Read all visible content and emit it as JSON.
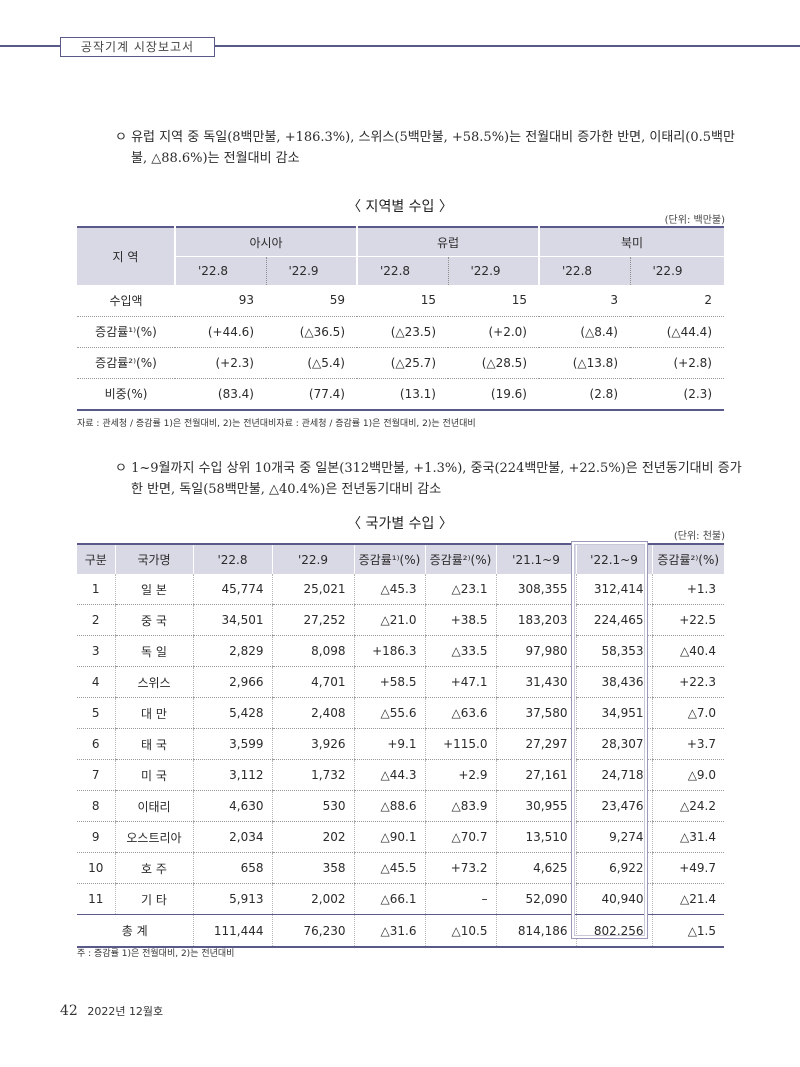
{
  "header": {
    "title": "공작기계 시장보고서"
  },
  "bullet1": "ㅇ 유럽 지역 중 독일(8백만불, +186.3%), 스위스(5백만불, +58.5%)는 전월대비 증가한 반면, 이태리(0.5백만불, △88.6%)는 전월대비 감소",
  "table1": {
    "caption": "〈 지역별 수입 〉",
    "unit": "(단위: 백만불)",
    "region_header": "지 역",
    "groups": [
      "아시아",
      "유럽",
      "북미"
    ],
    "periods": [
      "'22.8",
      "'22.9",
      "'22.8",
      "'22.9",
      "'22.8",
      "'22.9"
    ],
    "rows": [
      {
        "label": "수입액",
        "values": [
          "93",
          "59",
          "15",
          "15",
          "3",
          "2"
        ]
      },
      {
        "label": "증감률¹⁾(%)",
        "values": [
          "(+44.6)",
          "(△36.5)",
          "(△23.5)",
          "(+2.0)",
          "(△8.4)",
          "(△44.4)"
        ]
      },
      {
        "label": "증감률²⁾(%)",
        "values": [
          "(+2.3)",
          "(△5.4)",
          "(△25.7)",
          "(△28.5)",
          "(△13.8)",
          "(+2.8)"
        ]
      },
      {
        "label": "비중(%)",
        "values": [
          "(83.4)",
          "(77.4)",
          "(13.1)",
          "(19.6)",
          "(2.8)",
          "(2.3)"
        ]
      }
    ],
    "note": "자료 : 관세청 / 증감률 1)은 전월대비, 2)는 전년대비자료 : 관세청 / 증감률 1)은 전월대비, 2)는 전년대비"
  },
  "bullet2": "ㅇ 1~9월까지 수입 상위 10개국 중 일본(312백만불, +1.3%), 중국(224백만불, +22.5%)은 전년동기대비 증가한 반면, 독일(58백만불, △40.4%)은 전년동기대비 감소",
  "table2": {
    "caption": "〈 국가별 수입 〉",
    "unit": "(단위: 천불)",
    "headers": [
      "구분",
      "국가명",
      "'22.8",
      "'22.9",
      "증감률¹⁾(%)",
      "증감률²⁾(%)",
      "'21.1~9",
      "'22.1~9",
      "증감률²⁾(%)"
    ],
    "rows": [
      {
        "rank": "1",
        "name": "일 본",
        "values": [
          "45,774",
          "25,021",
          "△45.3",
          "△23.1",
          "308,355",
          "312,414",
          "+1.3"
        ]
      },
      {
        "rank": "2",
        "name": "중 국",
        "values": [
          "34,501",
          "27,252",
          "△21.0",
          "+38.5",
          "183,203",
          "224,465",
          "+22.5"
        ]
      },
      {
        "rank": "3",
        "name": "독 일",
        "values": [
          "2,829",
          "8,098",
          "+186.3",
          "△33.5",
          "97,980",
          "58,353",
          "△40.4"
        ]
      },
      {
        "rank": "4",
        "name": "스위스",
        "values": [
          "2,966",
          "4,701",
          "+58.5",
          "+47.1",
          "31,430",
          "38,436",
          "+22.3"
        ]
      },
      {
        "rank": "5",
        "name": "대 만",
        "values": [
          "5,428",
          "2,408",
          "△55.6",
          "△63.6",
          "37,580",
          "34,951",
          "△7.0"
        ]
      },
      {
        "rank": "6",
        "name": "태 국",
        "values": [
          "3,599",
          "3,926",
          "+9.1",
          "+115.0",
          "27,297",
          "28,307",
          "+3.7"
        ]
      },
      {
        "rank": "7",
        "name": "미 국",
        "values": [
          "3,112",
          "1,732",
          "△44.3",
          "+2.9",
          "27,161",
          "24,718",
          "△9.0"
        ]
      },
      {
        "rank": "8",
        "name": "이태리",
        "values": [
          "4,630",
          "530",
          "△88.6",
          "△83.9",
          "30,955",
          "23,476",
          "△24.2"
        ]
      },
      {
        "rank": "9",
        "name": "오스트리아",
        "values": [
          "2,034",
          "202",
          "△90.1",
          "△70.7",
          "13,510",
          "9,274",
          "△31.4"
        ]
      },
      {
        "rank": "10",
        "name": "호 주",
        "values": [
          "658",
          "358",
          "△45.5",
          "+73.2",
          "4,625",
          "6,922",
          "+49.7"
        ]
      },
      {
        "rank": "11",
        "name": "기 타",
        "values": [
          "5,913",
          "2,002",
          "△66.1",
          "–",
          "52,090",
          "40,940",
          "△21.4"
        ]
      }
    ],
    "total": {
      "label": "총 계",
      "values": [
        "111,444",
        "76,230",
        "△31.6",
        "△10.5",
        "814,186",
        "802,256",
        "△1.5"
      ]
    },
    "note": "주 : 증감률 1)은 전월대비, 2)는 전년대비"
  },
  "footer": {
    "page": "42",
    "issue": "2022년 12월호"
  }
}
